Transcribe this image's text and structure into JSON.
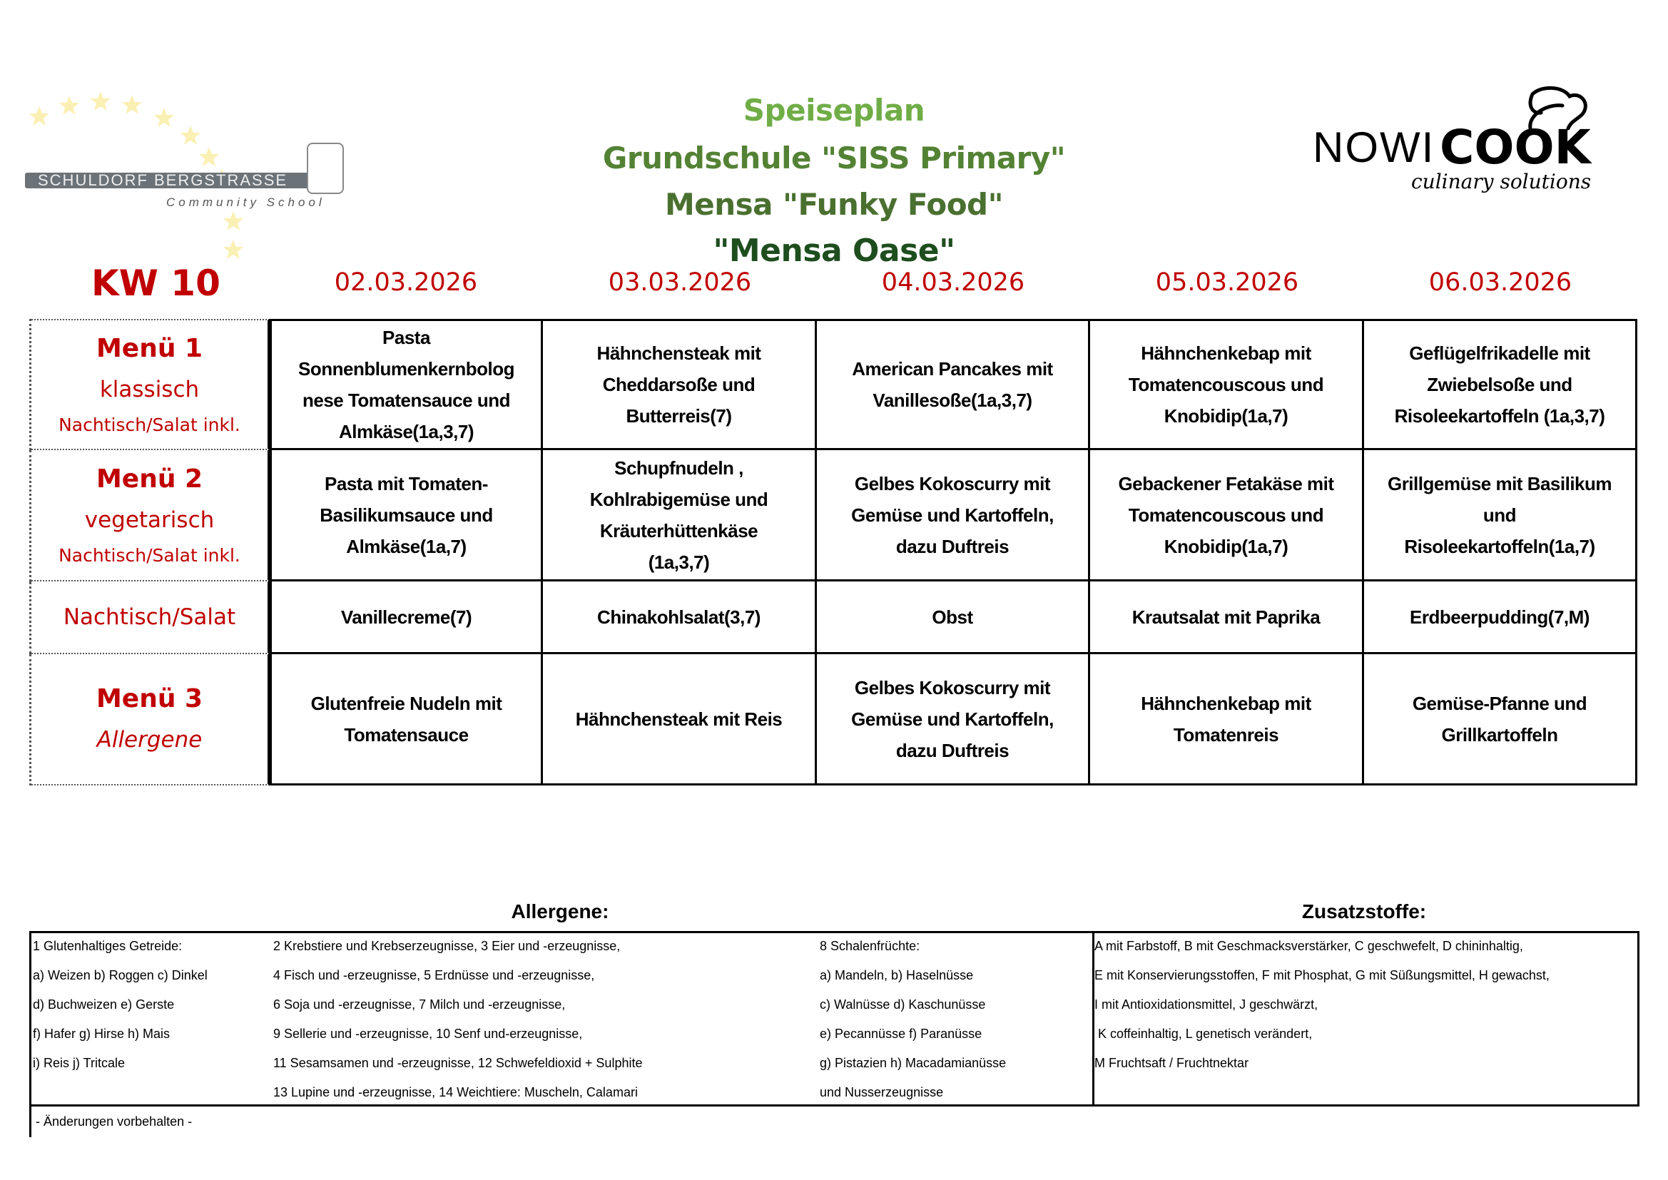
{
  "header": {
    "school_logo": {
      "name": "SCHULDORF BERGSTRASSE",
      "tagline": "Community School"
    },
    "caterer_logo": {
      "name_light": "NOWI",
      "name_bold": "COOK",
      "tagline": "culinary solutions"
    },
    "title_lines": [
      "Speiseplan",
      "Grundschule \"SISS Primary\"",
      "Mensa \"Funky Food\"",
      "\"Mensa Oase\""
    ],
    "title_colors": [
      "#70ad47",
      "#548235",
      "#4a7030",
      "#1e4d1e"
    ],
    "week": "KW 10",
    "dates": [
      "02.03.2026",
      "03.03.2026",
      "04.03.2026",
      "05.03.2026",
      "06.03.2026"
    ]
  },
  "accent_color": "#c00000",
  "menu": {
    "rows": [
      {
        "label": "Menü 1",
        "sub": "klassisch",
        "note": "Nachtisch/Salat inkl.",
        "cells": [
          "Pasta\nSonnenblumenkernbolog\nnese Tomatensauce und\nAlmkäse(1a,3,7)",
          "Hähnchensteak mit\nCheddarsoße und\nButterreis(7)",
          "American Pancakes mit\nVanillesoße(1a,3,7)",
          "Hähnchenkebap mit\nTomatencouscous und\nKnobidip(1a,7)",
          "Geflügelfrikadelle mit\nZwiebelsoße und\nRisoleekartoffeln (1a,3,7)"
        ]
      },
      {
        "label": "Menü 2",
        "sub": "vegetarisch",
        "note": "Nachtisch/Salat inkl.",
        "cells": [
          "Pasta mit Tomaten-\nBasilikumsauce und\nAlmkäse(1a,7)",
          "Schupfnudeln ,\nKohlrabigemüse und\nKräuterhüttenkäse\n(1a,3,7)",
          "Gelbes Kokoscurry mit\nGemüse und Kartoffeln,\ndazu Duftreis",
          "Gebackener Fetakäse mit\nTomatencouscous und\nKnobidip(1a,7)",
          "Grillgemüse mit Basilikum\nund\nRisoleekartoffeln(1a,7)"
        ]
      },
      {
        "label": "Nachtisch/Salat",
        "cells": [
          "Vanillecreme(7)",
          "Chinakohlsalat(3,7)",
          "Obst",
          "Krautsalat mit Paprika",
          "Erdbeerpudding(7,M)"
        ]
      },
      {
        "label": "Menü 3",
        "sub": "Allergene",
        "cells": [
          "Glutenfreie Nudeln mit\nTomatensauce",
          "Hähnchensteak mit Reis",
          "Gelbes Kokoscurry mit\nGemüse und Kartoffeln,\ndazu Duftreis",
          "Hähnchenkebap mit\nTomatenreis",
          "Gemüse-Pfanne und\nGrillkartoffeln"
        ]
      }
    ]
  },
  "legend": {
    "allergens_title": "Allergene:",
    "additives_title": "Zusatzstoffe:",
    "col1": [
      "1 Glutenhaltiges Getreide:",
      "a) Weizen b) Roggen c) Dinkel",
      "d) Buchweizen e) Gerste",
      "f) Hafer g) Hirse h) Mais",
      "i) Reis j) Tritcale"
    ],
    "col2": [
      "2 Krebstiere und Krebserzeugnisse, 3 Eier und -erzeugnisse,",
      "4 Fisch und -erzeugnisse, 5 Erdnüsse und -erzeugnisse,",
      "6 Soja und -erzeugnisse, 7 Milch und -erzeugnisse,",
      "9 Sellerie und -erzeugnisse, 10 Senf und-erzeugnisse,",
      "11 Sesamsamen und -erzeugnisse, 12 Schwefeldioxid + Sulphite",
      "13 Lupine und -erzeugnisse, 14 Weichtiere: Muscheln, Calamari"
    ],
    "col3": [
      "8 Schalenfrüchte:",
      "a) Mandeln, b) Haselnüsse",
      "c) Walnüsse d) Kaschunüsse",
      "e) Pecannüsse f) Paranüsse",
      "g) Pistazien h) Macadamianüsse",
      "und Nusserzeugnisse"
    ],
    "additives": [
      "A mit Farbstoff, B mit Geschmacksverstärker, C geschwefelt, D chininhaltig,",
      "E mit Konservierungsstoffen, F mit Phosphat, G mit Süßungsmittel, H gewachst,",
      "I mit Antioxidationsmittel, J geschwärzt,",
      " K coffeinhaltig, L genetisch verändert,",
      "M Fruchtsaft / Fruchtnektar"
    ],
    "footnote": "- Änderungen vorbehalten -"
  }
}
